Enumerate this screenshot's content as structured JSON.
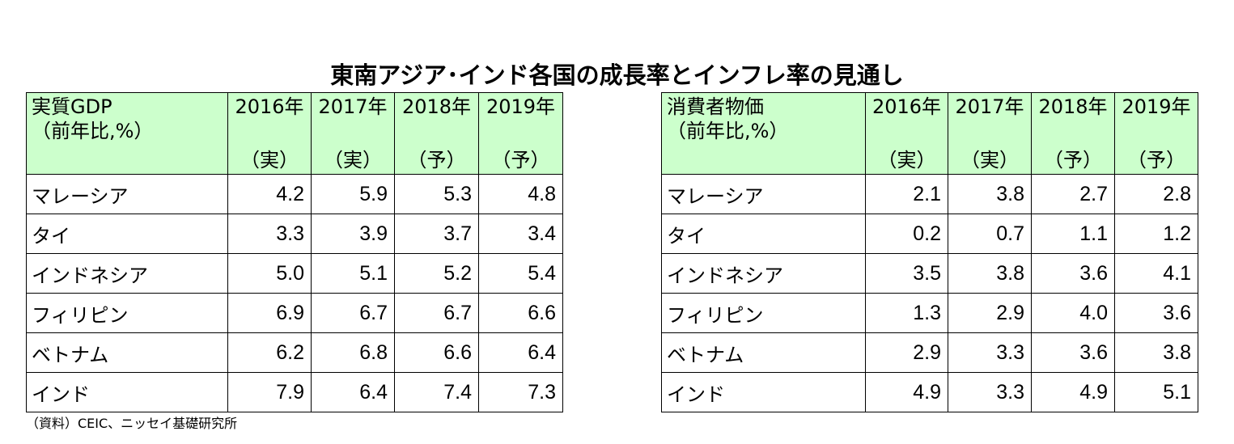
{
  "title": "東南アジア･インド各国の成長率とインフレ率の見通し",
  "gdp_table": {
    "label_line1": "実質GDP",
    "label_line2": "（前年比,%）",
    "columns": [
      {
        "year": "2016年",
        "kind": "（実）"
      },
      {
        "year": "2017年",
        "kind": "（実）"
      },
      {
        "year": "2018年",
        "kind": "（予）"
      },
      {
        "year": "2019年",
        "kind": "（予）"
      }
    ],
    "rows": [
      {
        "country": "マレーシア",
        "values": [
          "4.2",
          "5.9",
          "5.3",
          "4.8"
        ]
      },
      {
        "country": "タイ",
        "values": [
          "3.3",
          "3.9",
          "3.7",
          "3.4"
        ]
      },
      {
        "country": "インドネシア",
        "values": [
          "5.0",
          "5.1",
          "5.2",
          "5.4"
        ]
      },
      {
        "country": "フィリピン",
        "values": [
          "6.9",
          "6.7",
          "6.7",
          "6.6"
        ]
      },
      {
        "country": "ベトナム",
        "values": [
          "6.2",
          "6.8",
          "6.6",
          "6.4"
        ]
      },
      {
        "country": "インド",
        "values": [
          "7.9",
          "6.4",
          "7.4",
          "7.3"
        ]
      }
    ]
  },
  "cpi_table": {
    "label_line1": "消費者物価",
    "label_line2": "（前年比,%）",
    "columns": [
      {
        "year": "2016年",
        "kind": "（実）"
      },
      {
        "year": "2017年",
        "kind": "（実）"
      },
      {
        "year": "2018年",
        "kind": "（予）"
      },
      {
        "year": "2019年",
        "kind": "（予）"
      }
    ],
    "rows": [
      {
        "country": "マレーシア",
        "values": [
          "2.1",
          "3.8",
          "2.7",
          "2.8"
        ]
      },
      {
        "country": "タイ",
        "values": [
          "0.2",
          "0.7",
          "1.1",
          "1.2"
        ]
      },
      {
        "country": "インドネシア",
        "values": [
          "3.5",
          "3.8",
          "3.6",
          "4.1"
        ]
      },
      {
        "country": "フィリピン",
        "values": [
          "1.3",
          "2.9",
          "4.0",
          "3.6"
        ]
      },
      {
        "country": "ベトナム",
        "values": [
          "2.9",
          "3.3",
          "3.6",
          "3.8"
        ]
      },
      {
        "country": "インド",
        "values": [
          "4.9",
          "3.3",
          "4.9",
          "5.1"
        ]
      }
    ]
  },
  "source": "（資料）CEIC、ニッセイ基礎研究所",
  "colors": {
    "header_bg": "#ccffcc",
    "border": "#000000"
  }
}
